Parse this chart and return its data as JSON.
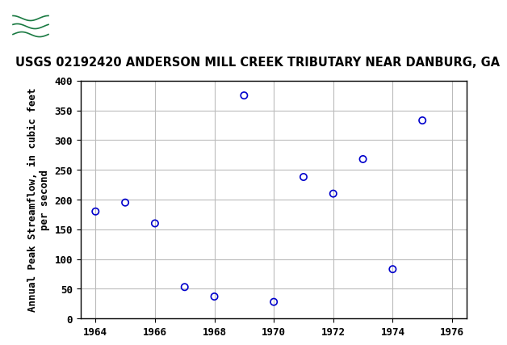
{
  "title": "USGS 02192420 ANDERSON MILL CREEK TRIBUTARY NEAR DANBURG, GA",
  "ylabel": "Annual Peak Streamflow, in cubic feet\nper second",
  "years": [
    1964,
    1965,
    1966,
    1967,
    1968,
    1969,
    1970,
    1971,
    1972,
    1973,
    1974,
    1975
  ],
  "values": [
    180,
    195,
    160,
    53,
    37,
    375,
    28,
    238,
    210,
    268,
    83,
    333
  ],
  "xlim": [
    1963.5,
    1976.5
  ],
  "ylim": [
    0,
    400
  ],
  "xticks": [
    1964,
    1966,
    1968,
    1970,
    1972,
    1974,
    1976
  ],
  "yticks": [
    0,
    50,
    100,
    150,
    200,
    250,
    300,
    350,
    400
  ],
  "marker_color": "#0000cc",
  "marker_size": 6,
  "grid_color": "#bbbbbb",
  "bg_color": "#ffffff",
  "header_bg_color": "#1a7a42",
  "title_fontsize": 10.5,
  "axis_label_fontsize": 9,
  "tick_fontsize": 9
}
